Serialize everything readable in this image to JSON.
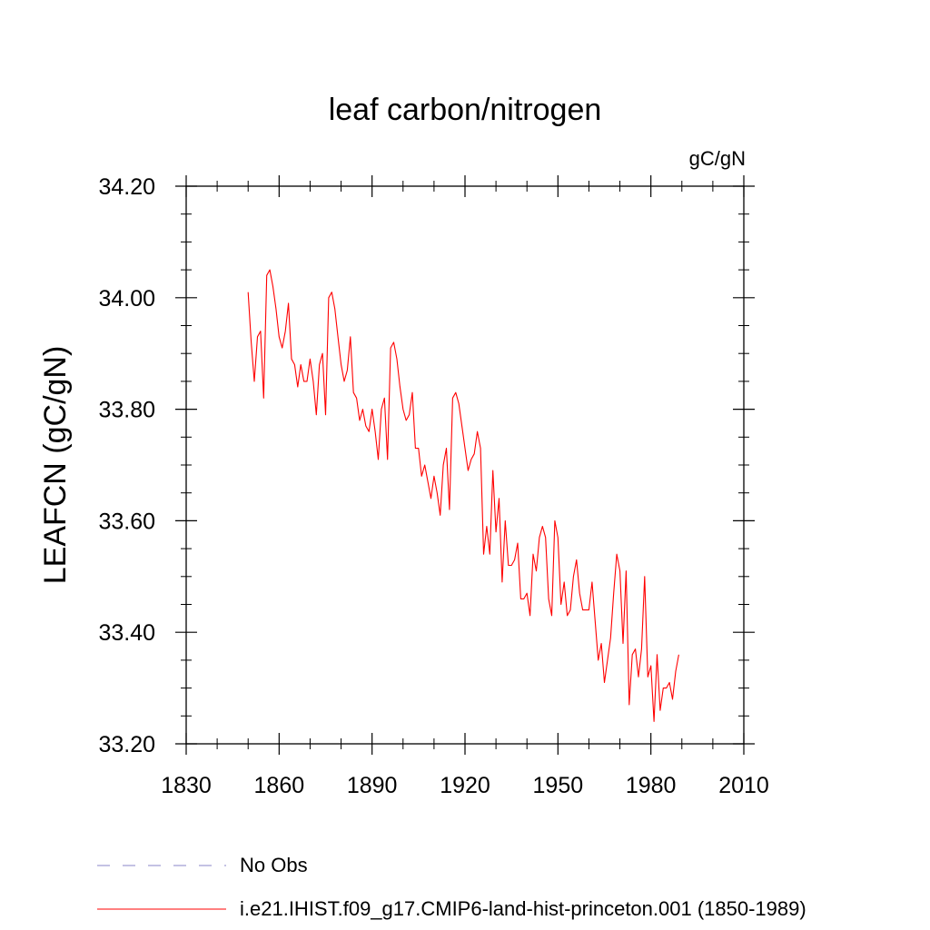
{
  "chart_data": {
    "type": "line",
    "title": "leaf carbon/nitrogen",
    "units_label": "gC/gN",
    "xlabel": "",
    "ylabel": "LEAFCN  (gC/gN)",
    "xlim": [
      1830,
      2010
    ],
    "ylim": [
      33.2,
      34.2
    ],
    "x_ticks": [
      1830,
      1860,
      1890,
      1920,
      1950,
      1980,
      2010
    ],
    "x_tick_labels": [
      "1830",
      "1860",
      "1890",
      "1920",
      "1950",
      "1980",
      "2010"
    ],
    "y_ticks": [
      33.2,
      33.4,
      33.6,
      33.8,
      34.0,
      34.2
    ],
    "y_tick_labels": [
      "33.20",
      "33.40",
      "33.60",
      "33.80",
      "34.00",
      "34.20"
    ],
    "grid": false,
    "legend_position": "bottom-left",
    "legend": [
      {
        "label": "No Obs",
        "color": "#8a84c8",
        "style": "dashed"
      },
      {
        "label": "i.e21.IHIST.f09_g17.CMIP6-land-hist-princeton.001 (1850-1989)",
        "color": "#ff0000",
        "style": "solid"
      }
    ],
    "series": [
      {
        "name": "i.e21.IHIST.f09_g17.CMIP6-land-hist-princeton.001 (1850-1989)",
        "color": "#ff0000",
        "x": [
          1850,
          1851,
          1852,
          1853,
          1854,
          1855,
          1856,
          1857,
          1858,
          1859,
          1860,
          1861,
          1862,
          1863,
          1864,
          1865,
          1866,
          1867,
          1868,
          1869,
          1870,
          1871,
          1872,
          1873,
          1874,
          1875,
          1876,
          1877,
          1878,
          1879,
          1880,
          1881,
          1882,
          1883,
          1884,
          1885,
          1886,
          1887,
          1888,
          1889,
          1890,
          1891,
          1892,
          1893,
          1894,
          1895,
          1896,
          1897,
          1898,
          1899,
          1900,
          1901,
          1902,
          1903,
          1904,
          1905,
          1906,
          1907,
          1908,
          1909,
          1910,
          1911,
          1912,
          1913,
          1914,
          1915,
          1916,
          1917,
          1918,
          1919,
          1920,
          1921,
          1922,
          1923,
          1924,
          1925,
          1926,
          1927,
          1928,
          1929,
          1930,
          1931,
          1932,
          1933,
          1934,
          1935,
          1936,
          1937,
          1938,
          1939,
          1940,
          1941,
          1942,
          1943,
          1944,
          1945,
          1946,
          1947,
          1948,
          1949,
          1950,
          1951,
          1952,
          1953,
          1954,
          1955,
          1956,
          1957,
          1958,
          1959,
          1960,
          1961,
          1962,
          1963,
          1964,
          1965,
          1966,
          1967,
          1968,
          1969,
          1970,
          1971,
          1972,
          1973,
          1974,
          1975,
          1976,
          1977,
          1978,
          1979,
          1980,
          1981,
          1982,
          1983,
          1984,
          1985,
          1986,
          1987,
          1988,
          1989
        ],
        "y": [
          34.01,
          33.92,
          33.85,
          33.93,
          33.94,
          33.82,
          34.04,
          34.05,
          34.02,
          33.98,
          33.93,
          33.91,
          33.94,
          33.99,
          33.89,
          33.88,
          33.84,
          33.88,
          33.85,
          33.85,
          33.89,
          33.85,
          33.79,
          33.88,
          33.9,
          33.79,
          34.0,
          34.01,
          33.98,
          33.93,
          33.88,
          33.85,
          33.87,
          33.93,
          33.83,
          33.82,
          33.78,
          33.8,
          33.77,
          33.76,
          33.8,
          33.76,
          33.71,
          33.8,
          33.82,
          33.71,
          33.91,
          33.92,
          33.89,
          33.84,
          33.8,
          33.78,
          33.79,
          33.83,
          33.73,
          33.73,
          33.68,
          33.7,
          33.67,
          33.64,
          33.68,
          33.65,
          33.61,
          33.7,
          33.73,
          33.62,
          33.82,
          33.83,
          33.81,
          33.77,
          33.73,
          33.69,
          33.71,
          33.72,
          33.76,
          33.73,
          33.54,
          33.59,
          33.54,
          33.69,
          33.58,
          33.64,
          33.49,
          33.6,
          33.52,
          33.52,
          33.53,
          33.56,
          33.46,
          33.46,
          33.47,
          33.43,
          33.54,
          33.51,
          33.57,
          33.59,
          33.57,
          33.46,
          33.43,
          33.6,
          33.57,
          33.45,
          33.49,
          33.43,
          33.44,
          33.5,
          33.53,
          33.47,
          33.44,
          33.44,
          33.44,
          33.49,
          33.42,
          33.35,
          33.38,
          33.31,
          33.35,
          33.39,
          33.47,
          33.54,
          33.51,
          33.38,
          33.51,
          33.27,
          33.36,
          33.37,
          33.32,
          33.37,
          33.5,
          33.32,
          33.34,
          33.24,
          33.36,
          33.26,
          33.3,
          33.3,
          33.31,
          33.28,
          33.33,
          33.36
        ]
      },
      {
        "name": "No Obs",
        "color": "#8a84c8",
        "x": [],
        "y": []
      }
    ]
  }
}
